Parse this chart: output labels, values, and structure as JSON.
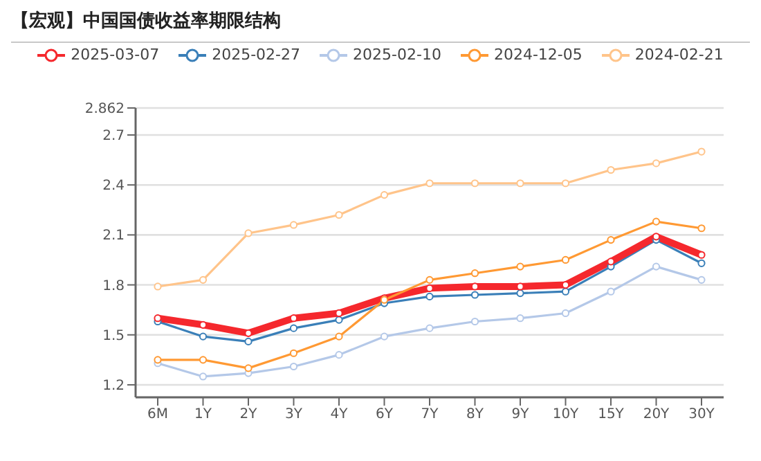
{
  "chart_data": {
    "type": "line",
    "title": "【宏观】中国国债收益率期限结构",
    "categories": [
      "6M",
      "1Y",
      "2Y",
      "3Y",
      "4Y",
      "6Y",
      "7Y",
      "8Y",
      "9Y",
      "10Y",
      "15Y",
      "20Y",
      "30Y"
    ],
    "series": [
      {
        "name": "2025-03-07",
        "color": "#f5282d",
        "values": [
          1.6,
          1.56,
          1.51,
          1.6,
          1.63,
          1.72,
          1.78,
          1.79,
          1.79,
          1.8,
          1.94,
          2.09,
          1.98
        ]
      },
      {
        "name": "2025-02-27",
        "color": "#3a7fb8",
        "values": [
          1.58,
          1.49,
          1.46,
          1.54,
          1.59,
          1.69,
          1.73,
          1.74,
          1.75,
          1.76,
          1.91,
          2.07,
          1.93
        ]
      },
      {
        "name": "2025-02-10",
        "color": "#b4c8e8",
        "values": [
          1.33,
          1.25,
          1.27,
          1.31,
          1.38,
          1.49,
          1.54,
          1.58,
          1.6,
          1.63,
          1.76,
          1.91,
          1.83
        ]
      },
      {
        "name": "2024-12-05",
        "color": "#ff9933",
        "values": [
          1.35,
          1.35,
          1.3,
          1.39,
          1.49,
          1.71,
          1.83,
          1.87,
          1.91,
          1.95,
          2.07,
          2.18,
          2.14
        ]
      },
      {
        "name": "2024-02-21",
        "color": "#ffc48a",
        "values": [
          1.79,
          1.83,
          2.11,
          2.16,
          2.22,
          2.34,
          2.41,
          2.41,
          2.41,
          2.41,
          2.49,
          2.53,
          2.6
        ]
      }
    ],
    "ylim": [
      1.125,
      2.862
    ],
    "yticks": [
      1.2,
      1.5,
      1.8,
      2.1,
      2.4,
      2.7,
      2.862
    ],
    "grid": "y",
    "legend": "top",
    "marker": "circle",
    "line_style": "solid"
  }
}
